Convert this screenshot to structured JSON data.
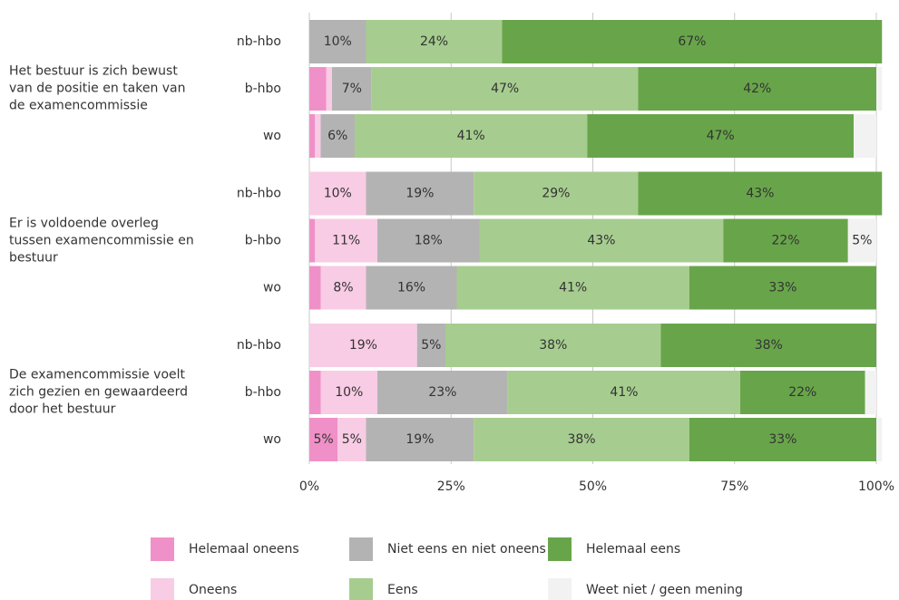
{
  "chart_data": {
    "type": "stacked-bar-horizontal",
    "categories": [
      "nb-hbo",
      "b-hbo",
      "wo",
      "nb-hbo",
      "b-hbo",
      "wo",
      "nb-hbo",
      "b-hbo",
      "wo"
    ],
    "groups": [
      {
        "name": "Het bestuur is zich bewust van de positie en taken van de examencommissie",
        "size": 3
      },
      {
        "name": "Er is voldoende overleg tussen examencommissie en bestuur",
        "size": 3
      },
      {
        "name": "De examencommissie voelt zich gezien en gewaardeerd door het bestuur",
        "size": 3
      }
    ],
    "series": [
      {
        "name": "Helemaal oneens",
        "color": "#f090c8",
        "values": [
          0,
          3,
          1,
          0,
          1,
          2,
          0,
          2,
          5
        ],
        "value_labels": [
          null,
          null,
          null,
          null,
          null,
          null,
          null,
          null,
          "5%"
        ]
      },
      {
        "name": "Oneens",
        "color": "#f8cce4",
        "values": [
          0,
          1,
          1,
          10,
          11,
          8,
          19,
          10,
          5
        ],
        "value_labels": [
          null,
          null,
          null,
          "10%",
          "11%",
          "8%",
          "19%",
          "10%",
          "5%"
        ]
      },
      {
        "name": "Niet eens en niet oneens",
        "color": "#b3b3b3",
        "values": [
          10,
          7,
          6,
          19,
          18,
          16,
          5,
          23,
          19
        ],
        "value_labels": [
          "10%",
          "7%",
          "6%",
          "19%",
          "18%",
          "16%",
          "5%",
          "23%",
          "19%"
        ]
      },
      {
        "name": "Eens",
        "color": "#a6cd8f",
        "values": [
          24,
          47,
          41,
          29,
          43,
          41,
          38,
          41,
          38
        ],
        "value_labels": [
          "24%",
          "47%",
          "41%",
          "29%",
          "43%",
          "41%",
          "38%",
          "41%",
          "38%"
        ]
      },
      {
        "name": "Helemaal eens",
        "color": "#68a54a",
        "values": [
          67,
          42,
          47,
          43,
          22,
          33,
          38,
          22,
          33
        ],
        "value_labels": [
          "67%",
          "42%",
          "47%",
          "43%",
          "22%",
          "33%",
          "38%",
          "22%",
          "33%"
        ]
      },
      {
        "name": "Weet niet / geen mening",
        "color": "#f2f2f2",
        "values": [
          0,
          1,
          4,
          0,
          5,
          0,
          0,
          2,
          1
        ],
        "value_labels": [
          null,
          null,
          null,
          null,
          "5%",
          null,
          null,
          null,
          null
        ]
      }
    ],
    "xlim": [
      0,
      100
    ],
    "xticks": [
      {
        "value": 0,
        "label": "0%"
      },
      {
        "value": 25,
        "label": "25%"
      },
      {
        "value": 50,
        "label": "50%"
      },
      {
        "value": 75,
        "label": "75%"
      },
      {
        "value": 100,
        "label": "100%"
      }
    ],
    "grid": true
  }
}
